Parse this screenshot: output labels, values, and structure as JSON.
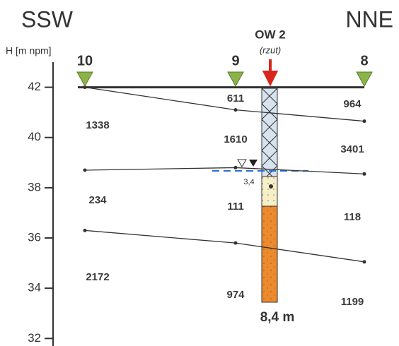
{
  "header": {
    "left": "SSW",
    "right": "NNE"
  },
  "axis": {
    "label": "H [m npm]",
    "ylim": [
      31.7,
      43
    ],
    "yticks": [
      32,
      34,
      36,
      38,
      40,
      42
    ]
  },
  "well": {
    "name": "OW 2",
    "note": "(rzut)",
    "depth_label": "8,4 m",
    "water_depth_label": "3,4"
  },
  "soundings": [
    {
      "label": "10",
      "resistivities": [
        1338,
        234,
        2172
      ]
    },
    {
      "label": "9",
      "resistivities": [
        611,
        1610,
        111,
        974
      ]
    },
    {
      "label": "8",
      "resistivities": [
        964,
        3401,
        118,
        1199
      ]
    }
  ],
  "boundaries": [
    {
      "elevations": [
        42,
        42,
        42
      ]
    },
    {
      "elevations": [
        42,
        41.1,
        40.65
      ]
    },
    {
      "elevations": [
        38.7,
        38.8,
        38.55
      ]
    },
    {
      "elevations": [
        36.3,
        35.8,
        35.05
      ]
    }
  ]
}
